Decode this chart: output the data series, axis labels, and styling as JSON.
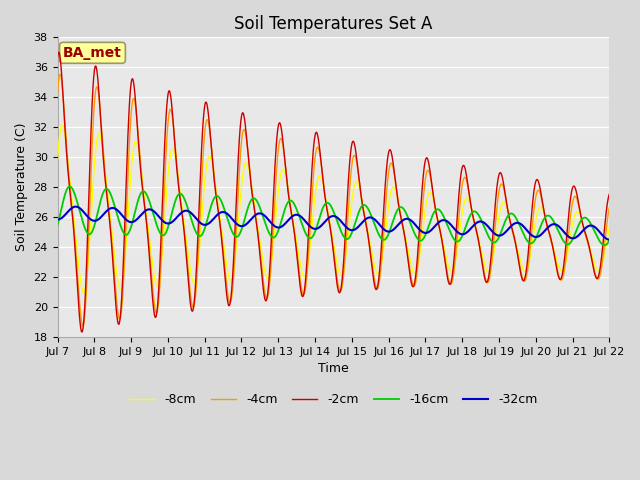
{
  "title": "Soil Temperatures Set A",
  "xlabel": "Time",
  "ylabel": "Soil Temperature (C)",
  "ylim": [
    18,
    38
  ],
  "yticks": [
    18,
    20,
    22,
    24,
    26,
    28,
    30,
    32,
    34,
    36,
    38
  ],
  "xtick_labels": [
    "Jul 7",
    "Jul 8",
    "Jul 9",
    "Jul 10",
    "Jul 11",
    "Jul 12",
    "Jul 13",
    "Jul 14",
    "Jul 15",
    "Jul 16",
    "Jul 17",
    "Jul 18",
    "Jul 19",
    "Jul 20",
    "Jul 21",
    "Jul 22"
  ],
  "colors": {
    "-2cm": "#cc0000",
    "-4cm": "#ff9900",
    "-8cm": "#ffff00",
    "-16cm": "#00cc00",
    "-32cm": "#0000cc"
  },
  "legend_labels": [
    "-2cm",
    "-4cm",
    "-8cm",
    "-16cm",
    "-32cm"
  ],
  "annotation_text": "BA_met",
  "annotation_color": "#990000",
  "annotation_bg": "#ffff99",
  "annotation_border": "#999966",
  "plot_bg": "#e8e8e8",
  "fig_bg": "#d9d9d9",
  "n_points": 1500,
  "title_fontsize": 12,
  "axis_label_fontsize": 9,
  "tick_fontsize": 8
}
